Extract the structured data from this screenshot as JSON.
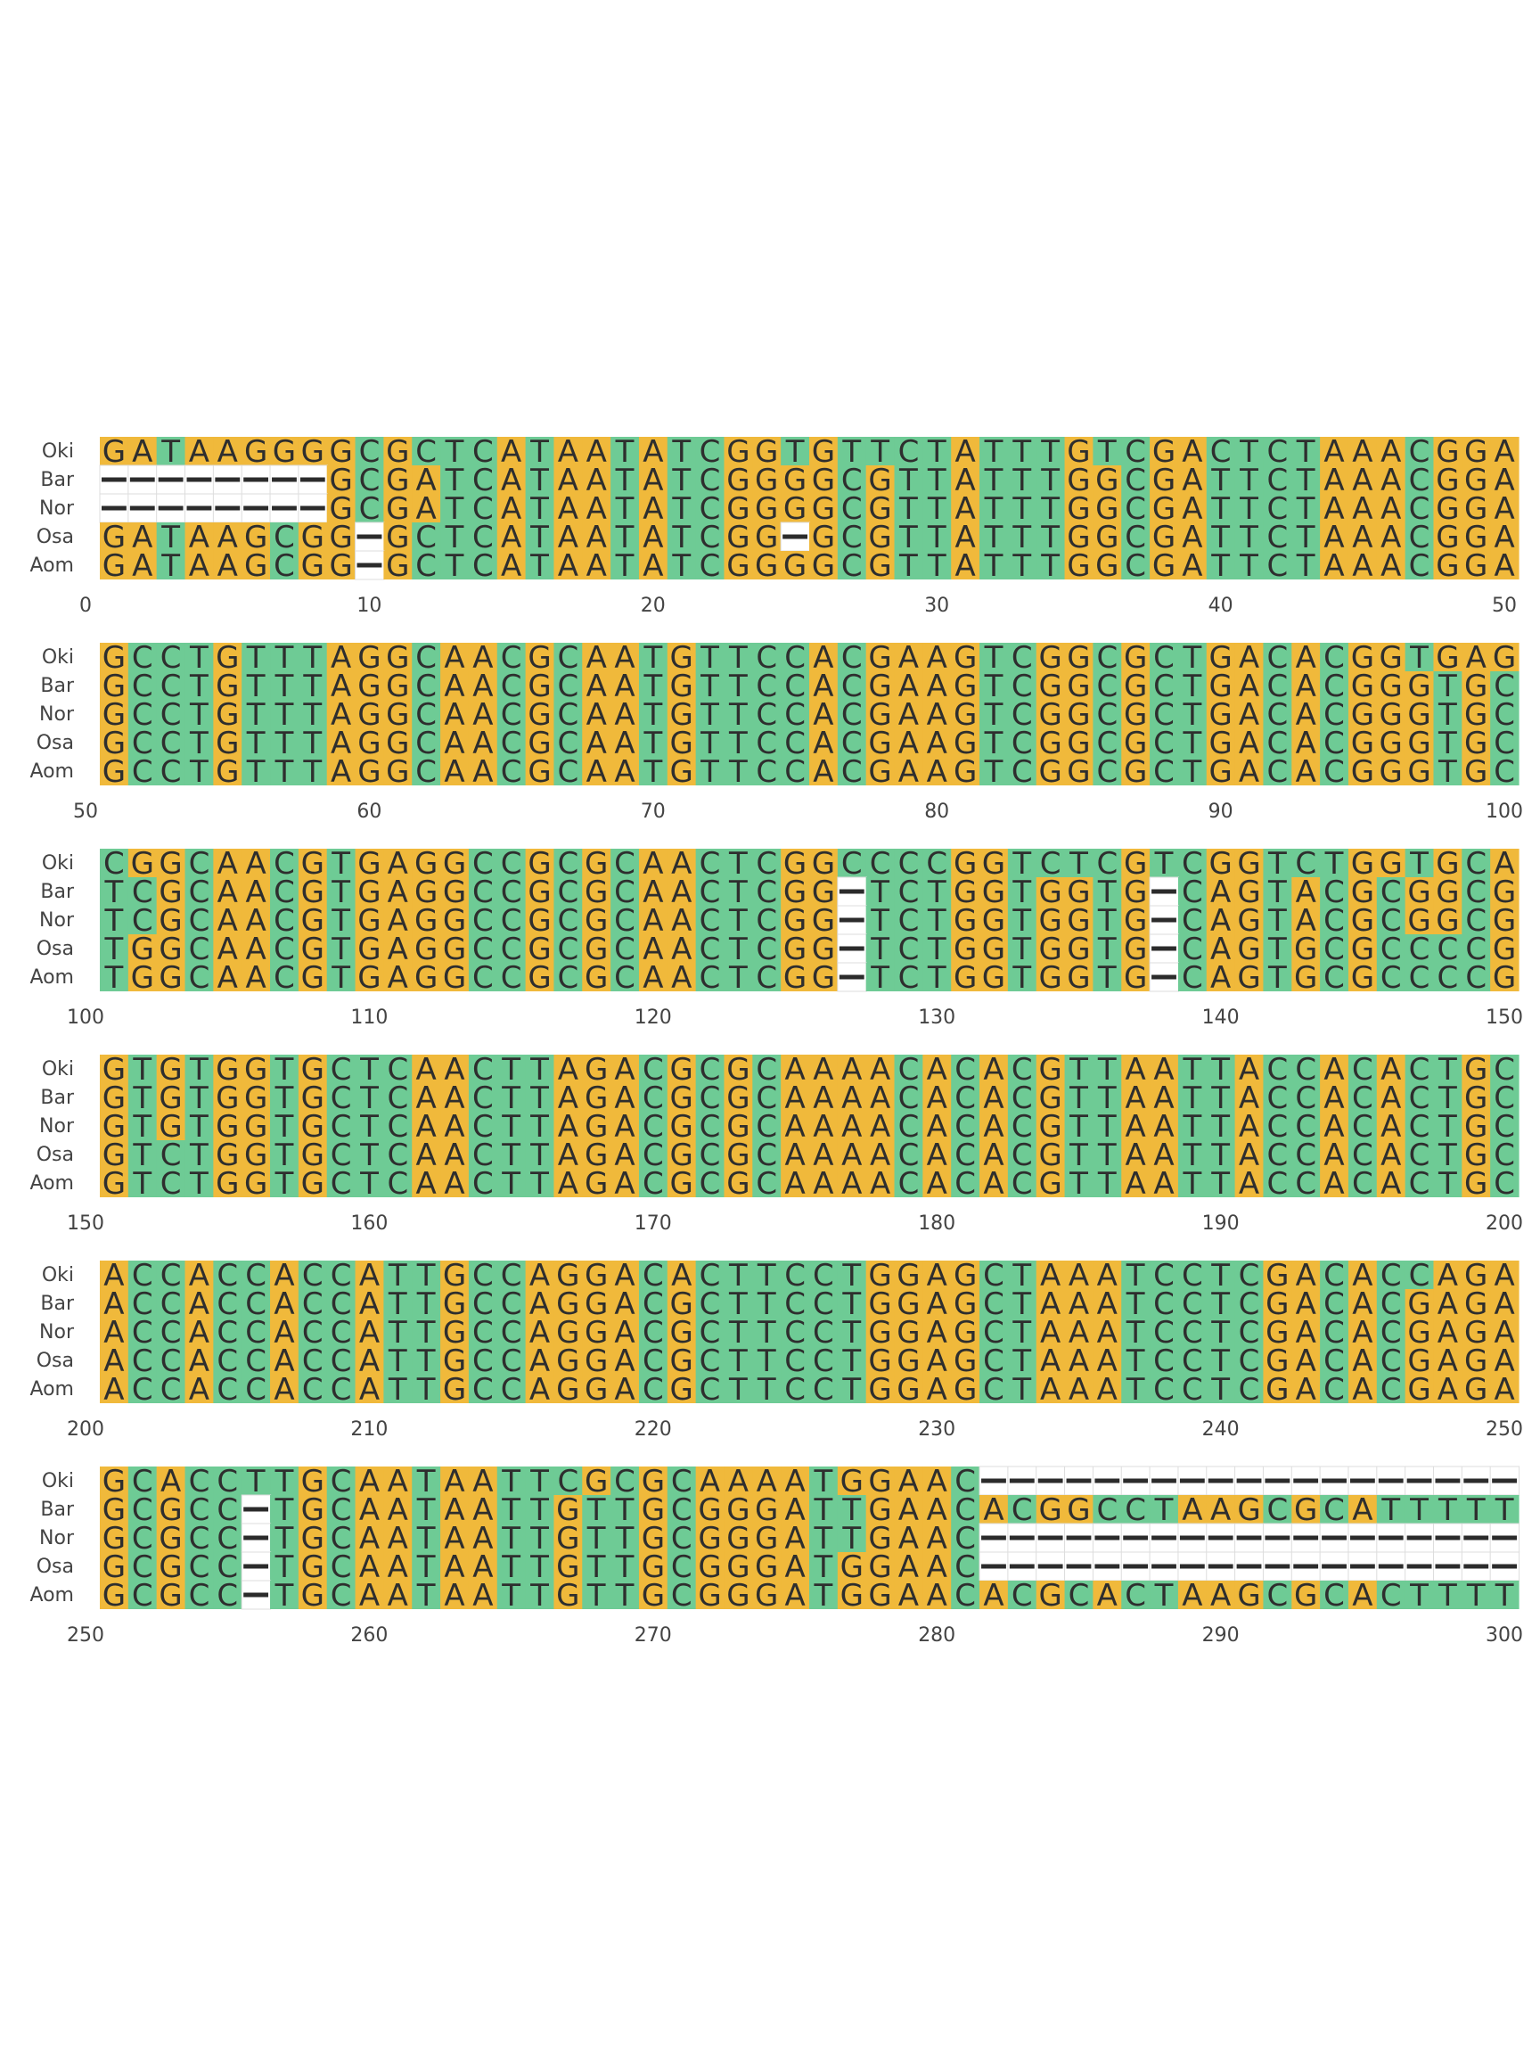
{
  "chart_data": {
    "type": "table",
    "title": "",
    "row_labels": [
      "Oki",
      "Bar",
      "Nor",
      "Osa",
      "Aom"
    ],
    "tick_step": 10,
    "panels": [
      {
        "start": 0,
        "end": 50,
        "ticks": [
          "0",
          "10",
          "20",
          "30",
          "40",
          "50"
        ],
        "sequences": {
          "Oki": "GATAAGGGGCGCTCATAATATCGGTGTTCTATTTGTCGACTCTAAACGGA",
          "Bar": "--------GCGATCATAATATCGGGGCGTTATTTGGCGATTCTAAACGGA",
          "Nor": "--------GCGATCATAATATCGGGGCGTTATTTGGCGATTCTAAACGGA",
          "Osa": "GATAAGCGG-GCTCATAATATCGG-GCGTTATTTGGCGATTCTAAACGGA",
          "Aom": "GATAAGCGG-GCTCATAATATCGGGGCGTTATTTGGCGATTCTAAACGGA"
        }
      },
      {
        "start": 50,
        "end": 100,
        "ticks": [
          "50",
          "60",
          "70",
          "80",
          "90",
          "100"
        ],
        "sequences": {
          "Oki": "GCCTGTTTAGGCAACGCAATGTTCCACGAAGTCGGCGCTGACACGGTGAG",
          "Bar": "GCCTGTTTAGGCAACGCAATGTTCCACGAAGTCGGCGCTGACACGGGTGC",
          "Nor": "GCCTGTTTAGGCAACGCAATGTTCCACGAAGTCGGCGCTGACACGGGTGC",
          "Osa": "GCCTGTTTAGGCAACGCAATGTTCCACGAAGTCGGCGCTGACACGGGTGC",
          "Aom": "GCCTGTTTAGGCAACGCAATGTTCCACGAAGTCGGCGCTGACACGGGTGC"
        }
      },
      {
        "start": 100,
        "end": 150,
        "ticks": [
          "100",
          "110",
          "120",
          "130",
          "140",
          "150"
        ],
        "sequences": {
          "Oki": "CGGCAACGTGAGGCCGCGCAACTCGGCCCCGGTCTCGTCGGTCTGGTGCA",
          "Bar": "TCGCAACGTGAGGCCGCGCAACTCGG-TCTGGTGGTG-CAGTACGCGGCG",
          "Nor": "TCGCAACGTGAGGCCGCGCAACTCGG-TCTGGTGGTG-CAGTACGCGGCG",
          "Osa": "TGGCAACGTGAGGCCGCGCAACTCGG-TCTGGTGGTG-CAGTGCGCCCCG",
          "Aom": "TGGCAACGTGAGGCCGCGCAACTCGG-TCTGGTGGTG-CAGTGCGCCCCG"
        }
      },
      {
        "start": 150,
        "end": 200,
        "ticks": [
          "150",
          "160",
          "170",
          "180",
          "190",
          "200"
        ],
        "sequences": {
          "Oki": "GTGTGGTGCTCAACTTAGACGCGCAAAACACACGTTAATTACCACACTGC",
          "Bar": "GTGTGGTGCTCAACTTAGACGCGCAAAACACACGTTAATTACCACACTGC",
          "Nor": "GTGTGGTGCTCAACTTAGACGCGCAAAACACACGTTAATTACCACACTGC",
          "Osa": "GTCTGGTGCTCAACTTAGACGCGCAAAACACACGTTAATTACCACACTGC",
          "Aom": "GTCTGGTGCTCAACTTAGACGCGCAAAACACACGTTAATTACCACACTGC"
        }
      },
      {
        "start": 200,
        "end": 250,
        "ticks": [
          "200",
          "210",
          "220",
          "230",
          "240",
          "250"
        ],
        "sequences": {
          "Oki": "ACCACCACCATTGCCAGGACACTTCCTGGAGCTAAATCCTCGACACCAGA",
          "Bar": "ACCACCACCATTGCCAGGACGCTTCCTGGAGCTAAATCCTCGACACGAGA",
          "Nor": "ACCACCACCATTGCCAGGACGCTTCCTGGAGCTAAATCCTCGACACGAGA",
          "Osa": "ACCACCACCATTGCCAGGACGCTTCCTGGAGCTAAATCCTCGACACGAGA",
          "Aom": "ACCACCACCATTGCCAGGACGCTTCCTGGAGCTAAATCCTCGACACGAGA"
        }
      },
      {
        "start": 250,
        "end": 300,
        "ticks": [
          "250",
          "260",
          "270",
          "280",
          "290",
          "300"
        ],
        "sequences": {
          "Oki": "GCACCTTGCAATAATTCGCGCAAAATGGAAC-------------------",
          "Bar": "GCGCC-TGCAATAATTGTTGCGGGATTGAACACGGCCTAAGCGCATTTTT",
          "Nor": "GCGCC-TGCAATAATTGTTGCGGGATTGAAC-------------------",
          "Osa": "GCGCC-TGCAATAATTGTTGCGGGATGGAAC-------------------",
          "Aom": "GCGCC-TGCAATAATTGTTGCGGGATGGAACACGCACTAAGCGCACTTTT"
        }
      }
    ],
    "colors": {
      "G": "#f0b93b",
      "A": "#f0b93b",
      "C": "#6ecb95",
      "T": "#6ecb95",
      "gap": "#ffffff",
      "gap_mark": "#2b2b2b",
      "letter": "#2e2e2e",
      "label": "#444444",
      "cell_border": "#dddddd"
    }
  }
}
